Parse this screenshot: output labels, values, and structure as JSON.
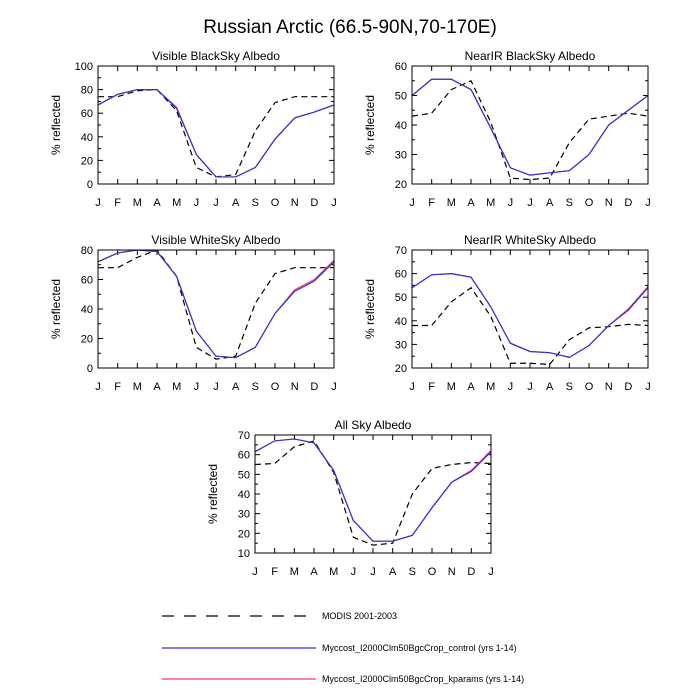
{
  "figure": {
    "title": "Russian Arctic (66.5-90N,70-170E)"
  },
  "series_styles": {
    "modis": {
      "color": "#000000",
      "dash": "dashed"
    },
    "control": {
      "color": "#3333cc",
      "dash": "solid"
    },
    "kparams": {
      "color": "#ff3366",
      "dash": "solid"
    }
  },
  "legend": [
    {
      "key": "modis",
      "label": "MODIS 2001-2003"
    },
    {
      "key": "control",
      "label": "Myccost_I2000Clm50BgcCrop_control (yrs 1-14)"
    },
    {
      "key": "kparams",
      "label": "Myccost_I2000Clm50BgcCrop_kparams (yrs 1-14)"
    }
  ],
  "chart_data": [
    {
      "id": "vis-blacksky",
      "type": "line",
      "title": "Visible BlackSky Albedo",
      "xlabel": "",
      "ylabel": "% reflected",
      "categories": [
        "J",
        "F",
        "M",
        "A",
        "M",
        "J",
        "J",
        "A",
        "S",
        "O",
        "N",
        "D",
        "J"
      ],
      "ylim": [
        0,
        100
      ],
      "yticks": [
        0,
        20,
        40,
        60,
        80,
        100
      ],
      "series": [
        {
          "key": "modis",
          "name": "MODIS 2001-2003",
          "values": [
            74,
            74,
            79,
            80,
            62,
            14,
            6,
            8,
            45,
            69,
            74,
            74,
            74
          ]
        },
        {
          "key": "kparams",
          "name": "Myccost_I2000Clm50BgcCrop_kparams (yrs 1-14)",
          "values": [
            67,
            76,
            80,
            80,
            65,
            25,
            6,
            6,
            14,
            38,
            56,
            61,
            67
          ]
        },
        {
          "key": "control",
          "name": "Myccost_I2000Clm50BgcCrop_control (yrs 1-14)",
          "values": [
            67,
            76,
            80,
            80,
            64,
            25,
            6,
            6,
            14,
            38,
            56,
            61,
            67
          ]
        }
      ]
    },
    {
      "id": "nir-blacksky",
      "type": "line",
      "title": "NearIR BlackSky Albedo",
      "xlabel": "",
      "ylabel": "% reflected",
      "categories": [
        "J",
        "F",
        "M",
        "A",
        "M",
        "J",
        "J",
        "A",
        "S",
        "O",
        "N",
        "D",
        "J"
      ],
      "ylim": [
        20,
        60
      ],
      "yticks": [
        20,
        30,
        40,
        50,
        60
      ],
      "series": [
        {
          "key": "modis",
          "name": "MODIS 2001-2003",
          "values": [
            43,
            44,
            52,
            55,
            41,
            22,
            21.5,
            22,
            34,
            42,
            43,
            44,
            43
          ]
        },
        {
          "key": "kparams",
          "name": "Myccost_I2000Clm50BgcCrop_kparams (yrs 1-14)",
          "values": [
            50,
            55.5,
            55.5,
            52,
            39,
            25.5,
            23,
            23.8,
            24.5,
            30,
            40,
            45,
            50
          ]
        },
        {
          "key": "control",
          "name": "Myccost_I2000Clm50BgcCrop_control (yrs 1-14)",
          "values": [
            50,
            55.5,
            55.5,
            52,
            39,
            25.5,
            23,
            23.8,
            24.5,
            30,
            40,
            45,
            50
          ]
        }
      ]
    },
    {
      "id": "vis-whitesky",
      "type": "line",
      "title": "Visible WhiteSky Albedo",
      "xlabel": "",
      "ylabel": "% reflected",
      "categories": [
        "J",
        "F",
        "M",
        "A",
        "M",
        "J",
        "J",
        "A",
        "S",
        "O",
        "N",
        "D",
        "J"
      ],
      "ylim": [
        0,
        80
      ],
      "yticks": [
        0,
        20,
        40,
        60,
        80
      ],
      "series": [
        {
          "key": "modis",
          "name": "MODIS 2001-2003",
          "values": [
            68,
            68,
            75,
            80,
            62,
            14,
            6,
            8,
            44,
            64,
            68,
            68,
            68
          ]
        },
        {
          "key": "kparams",
          "name": "Myccost_I2000Clm50BgcCrop_kparams (yrs 1-14)",
          "values": [
            72,
            78,
            80,
            79,
            62,
            25,
            8,
            7,
            14,
            37,
            53,
            60,
            73
          ]
        },
        {
          "key": "control",
          "name": "Myccost_I2000Clm50BgcCrop_control (yrs 1-14)",
          "values": [
            72,
            78,
            80,
            79,
            62,
            25,
            8,
            7,
            14,
            37,
            52,
            59,
            72
          ]
        }
      ]
    },
    {
      "id": "nir-whitesky",
      "type": "line",
      "title": "NearIR WhiteSky Albedo",
      "xlabel": "",
      "ylabel": "% reflected",
      "categories": [
        "J",
        "F",
        "M",
        "A",
        "M",
        "J",
        "J",
        "A",
        "S",
        "O",
        "N",
        "D",
        "J"
      ],
      "ylim": [
        20,
        70
      ],
      "yticks": [
        20,
        30,
        40,
        50,
        60,
        70
      ],
      "series": [
        {
          "key": "modis",
          "name": "MODIS 2001-2003",
          "values": [
            38,
            38,
            48,
            54,
            42,
            22,
            22,
            21.5,
            32,
            37,
            37.5,
            38.5,
            38
          ]
        },
        {
          "key": "kparams",
          "name": "Myccost_I2000Clm50BgcCrop_kparams (yrs 1-14)",
          "values": [
            54,
            59.5,
            60,
            58.5,
            46,
            30.5,
            27,
            26.5,
            24.5,
            29.5,
            38,
            45,
            54.5
          ]
        },
        {
          "key": "control",
          "name": "Myccost_I2000Clm50BgcCrop_control (yrs 1-14)",
          "values": [
            54,
            59.5,
            60,
            58.5,
            46,
            30.5,
            27,
            26.5,
            24.5,
            29.5,
            38,
            44.5,
            54
          ]
        }
      ]
    },
    {
      "id": "allsky",
      "type": "line",
      "title": "All Sky Albedo",
      "xlabel": "",
      "ylabel": "% reflected",
      "categories": [
        "J",
        "F",
        "M",
        "A",
        "M",
        "J",
        "J",
        "A",
        "S",
        "O",
        "N",
        "D",
        "J"
      ],
      "ylim": [
        10,
        70
      ],
      "yticks": [
        10,
        20,
        30,
        40,
        50,
        60,
        70
      ],
      "series": [
        {
          "key": "modis",
          "name": "MODIS 2001-2003",
          "values": [
            55,
            55.5,
            64,
            67,
            51,
            18,
            14,
            15,
            40,
            53,
            55,
            56,
            55.5
          ]
        },
        {
          "key": "kparams",
          "name": "Myccost_I2000Clm50BgcCrop_kparams (yrs 1-14)",
          "values": [
            61.5,
            67,
            68,
            66,
            52,
            26.5,
            16,
            16,
            19,
            33,
            46,
            52,
            62
          ]
        },
        {
          "key": "control",
          "name": "Myccost_I2000Clm50BgcCrop_control (yrs 1-14)",
          "values": [
            61.5,
            67,
            68,
            66,
            52,
            26.5,
            16,
            16,
            19,
            33,
            46,
            51.5,
            61.5
          ]
        }
      ]
    }
  ]
}
